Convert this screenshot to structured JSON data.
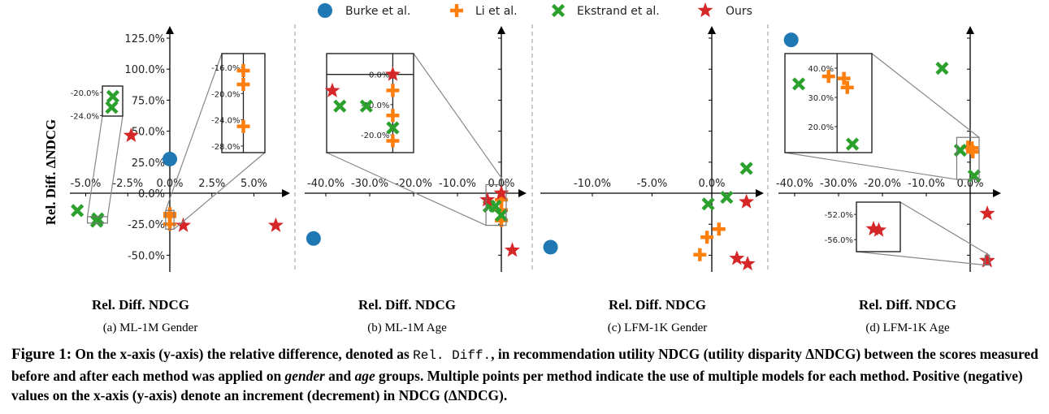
{
  "legend": [
    {
      "name": "Burke et al.",
      "marker": "circle",
      "color": "#1f77b4"
    },
    {
      "name": "Li et al.",
      "marker": "plus",
      "color": "#ff7f0e"
    },
    {
      "name": "Ekstrand et al.",
      "marker": "x",
      "color": "#2ca02c"
    },
    {
      "name": "Ours",
      "marker": "star",
      "color": "#d62728"
    }
  ],
  "chart_data": [
    {
      "type": "scatter",
      "title": "(a) ML-1M Gender",
      "xlabel": "Rel. Diff. NDCG",
      "ylabel": "Rel. Diff. ΔNDCG",
      "xticks": [
        -5,
        -2.5,
        0,
        2.5,
        5
      ],
      "xtick_labels": [
        "-5.0%",
        "-2.5%",
        "0.0%",
        "2.5%",
        "5.0%"
      ],
      "yticks": [
        -50,
        -25,
        0,
        25,
        50,
        75,
        100,
        125
      ],
      "ytick_labels": [
        "-50.0%",
        "-25.0%",
        "0.0%",
        "25.0%",
        "50.0%",
        "75.0%",
        "100.0%",
        "125.0%"
      ],
      "series": [
        {
          "name": "Burke et al.",
          "points": [
            [
              0,
              27.5
            ]
          ]
        },
        {
          "name": "Li et al.",
          "points": [
            [
              0,
              -16.5
            ],
            [
              0,
              -18.6
            ],
            [
              0,
              -25.0
            ]
          ]
        },
        {
          "name": "Ekstrand et al.",
          "points": [
            [
              -5.5,
              -14
            ],
            [
              -4.28,
              -20.7
            ],
            [
              -4.35,
              -22.6
            ]
          ]
        },
        {
          "name": "Ours",
          "points": [
            [
              -2.3,
              46.5
            ],
            [
              0.8,
              -26
            ],
            [
              6.3,
              -26
            ]
          ]
        }
      ],
      "insets": [
        {
          "xlim": [
            -4.9,
            -3.7
          ],
          "ylim": [
            -24.1,
            -18.9
          ],
          "yticks": [
            -20,
            -24
          ],
          "ytick_labels": [
            "-20.0%",
            "-24.0%"
          ]
        },
        {
          "xlim": [
            -0.25,
            0.25
          ],
          "ylim": [
            -29,
            -13.9
          ],
          "yticks": [
            -16,
            -20,
            -24,
            -28
          ],
          "ytick_labels": [
            "-16.0%",
            "-20.0%",
            "-24.0%",
            "-28.0%"
          ]
        }
      ]
    },
    {
      "type": "scatter",
      "title": "(b) ML-1M Age",
      "xlabel": "Rel. Diff. NDCG",
      "xticks": [
        -40,
        -30,
        -20,
        -10,
        0
      ],
      "xtick_labels": [
        "-40.0%",
        "-30.0%",
        "-20.0%",
        "-10.0%",
        "0.0%"
      ],
      "yticks": [
        -50,
        -25,
        0,
        25,
        50,
        75,
        100,
        125
      ],
      "series": [
        {
          "name": "Burke et al.",
          "points": [
            [
              -42.8,
              -36.5
            ]
          ]
        },
        {
          "name": "Li et al.",
          "points": [
            [
              0,
              -5.3
            ],
            [
              0,
              -13.6
            ],
            [
              0,
              -22
            ]
          ]
        },
        {
          "name": "Ekstrand et al.",
          "points": [
            [
              -2.8,
              -10.5
            ],
            [
              -1.4,
              -10.5
            ],
            [
              0,
              -17.7
            ]
          ]
        },
        {
          "name": "Ours",
          "points": [
            [
              0,
              0
            ],
            [
              -3.2,
              -5.4
            ],
            [
              2.5,
              -46
            ]
          ]
        }
      ],
      "insets": [
        {
          "xlim": [
            -3.5,
            1.1
          ],
          "ylim": [
            -25.9,
            6.9
          ],
          "yticks": [
            0,
            -10,
            -20
          ],
          "ytick_labels": [
            "0.0%",
            "-10.0%",
            "-20.0%"
          ]
        }
      ]
    },
    {
      "type": "scatter",
      "title": "(c) LFM-1K Gender",
      "xlabel": "Rel. Diff. NDCG",
      "xticks": [
        -10,
        -5,
        0
      ],
      "xtick_labels": [
        "-10.0%",
        "-5.0%",
        "0.0%"
      ],
      "yticks": [
        -50,
        -25,
        0,
        25,
        50,
        75,
        100,
        125
      ],
      "series": [
        {
          "name": "Burke et al.",
          "points": [
            [
              -13.5,
              -43.5
            ]
          ]
        },
        {
          "name": "Li et al.",
          "points": [
            [
              0.6,
              -29
            ],
            [
              -0.4,
              -35.5
            ],
            [
              -1.0,
              -49.6
            ]
          ]
        },
        {
          "name": "Ekstrand et al.",
          "points": [
            [
              2.9,
              20
            ],
            [
              1.25,
              -3.3
            ],
            [
              -0.3,
              -8.7
            ]
          ]
        },
        {
          "name": "Ours",
          "points": [
            [
              2.9,
              -7
            ],
            [
              2.1,
              -52.6
            ],
            [
              3.0,
              -57
            ]
          ]
        }
      ],
      "insets": []
    },
    {
      "type": "scatter",
      "title": "(d) LFM-1K Age",
      "xlabel": "Rel. Diff. NDCG",
      "xticks": [
        -40,
        -30,
        -20,
        -10,
        0
      ],
      "xtick_labels": [
        "-40.0%",
        "-30.0%",
        "-20.0%",
        "-10.0%",
        "0.0%"
      ],
      "yticks": [
        -50,
        -25,
        0,
        25,
        50,
        75,
        100,
        125
      ],
      "series": [
        {
          "name": "Burke et al.",
          "points": [
            [
              -40.8,
              123.6
            ]
          ]
        },
        {
          "name": "Li et al.",
          "points": [
            [
              -0.5,
              37.2
            ],
            [
              0.4,
              36.5
            ],
            [
              0.6,
              33.4
            ]
          ]
        },
        {
          "name": "Ekstrand et al.",
          "points": [
            [
              -6.4,
              100.7
            ],
            [
              -2.25,
              34.6
            ],
            [
              0.9,
              14
            ]
          ]
        },
        {
          "name": "Ours",
          "points": [
            [
              3.9,
              -16.4
            ],
            [
              3.79,
              -54.3
            ],
            [
              3.91,
              -54.5
            ]
          ]
        }
      ],
      "insets": [
        {
          "xlim": [
            -3.06,
            2.04
          ],
          "ylim": [
            11.1,
            45
          ],
          "yticks": [
            40,
            30,
            20
          ],
          "ytick_labels": [
            "40.0%",
            "30.0%",
            "20.0%"
          ]
        },
        {
          "xlim": [
            3.4,
            4.4
          ],
          "ylim": [
            -57.9,
            -50.05
          ],
          "yticks": [
            -52,
            -56
          ],
          "ytick_labels": [
            "-52.0%",
            "-56.0%"
          ]
        }
      ]
    }
  ],
  "caption": {
    "label": "Figure 1:",
    "text_1": " On the x-axis (y-axis) the relative difference, denoted as ",
    "code": "Rel. Diff.",
    "text_2": ", in recommendation utility NDCG (utility disparity ΔNDCG) between the scores measured before and after each method was applied on ",
    "em_1": "gender",
    "text_3": " and ",
    "em_2": "age",
    "text_4": " groups. Multiple points per method indicate the use of multiple models for each method. Positive (negative) values on the x-axis (y-axis) denote an increment (decrement) in NDCG (ΔNDCG)."
  }
}
